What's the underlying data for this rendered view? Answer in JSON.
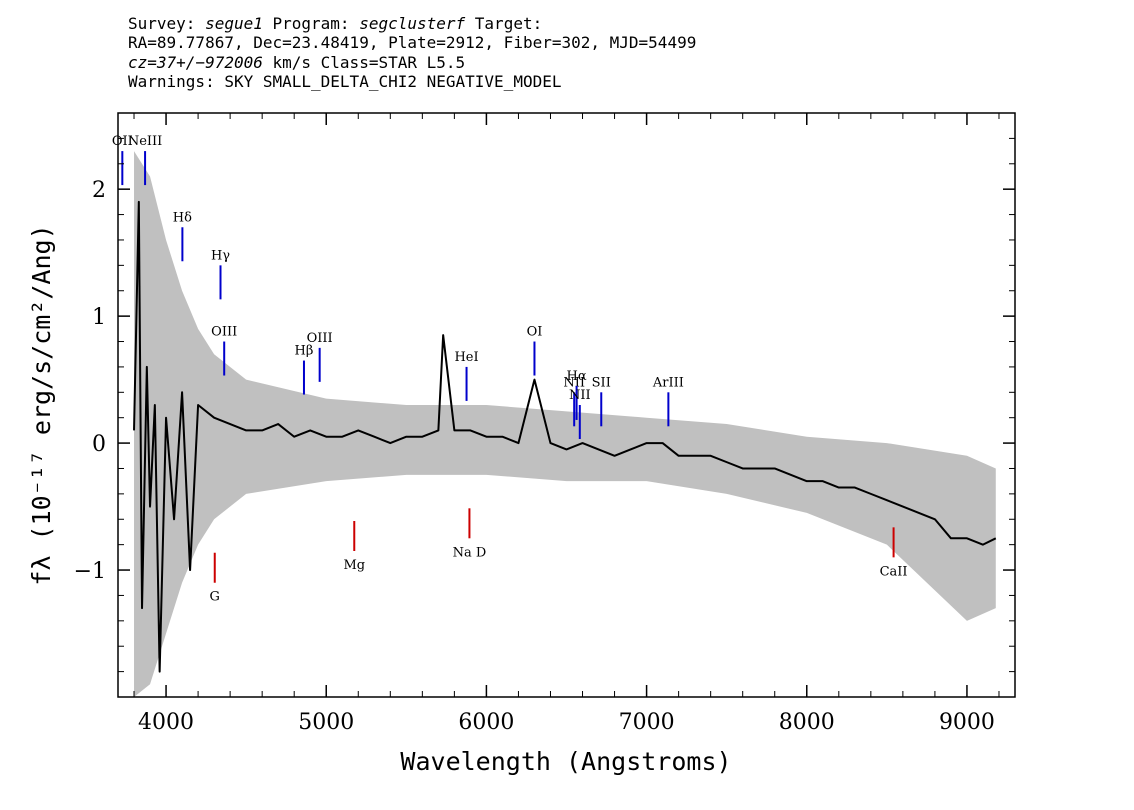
{
  "header": {
    "line1": {
      "survey_key": "Survey: ",
      "survey": "segue1",
      "program_key": " Program: ",
      "program": "segclusterf",
      "target_key": " Target:"
    },
    "line2": "RA=89.77867, Dec=23.48419, Plate=2912, Fiber=302, MJD=54499",
    "line3": {
      "cz": "cz=37+/−972006",
      "rest": " km/s Class=STAR L5.5"
    },
    "line4": "Warnings: SKY SMALL_DELTA_CHI2 NEGATIVE_MODEL"
  },
  "colors": {
    "flux": "#000000",
    "error_band": "#c0c0c0",
    "emission": "#0000cc",
    "absorption": "#cc0000"
  },
  "chart_data": {
    "type": "line",
    "xlabel": "Wavelength (Angstroms)",
    "ylabel": "fλ (10⁻¹⁷ erg/s/cm²/Ang)",
    "xlim": [
      3700,
      9300
    ],
    "ylim": [
      -2.0,
      2.6
    ],
    "xticks": [
      4000,
      5000,
      6000,
      7000,
      8000,
      9000
    ],
    "yticks": [
      -1,
      0,
      1,
      2
    ],
    "series": [
      {
        "role": "flux",
        "x": [
          3800,
          3830,
          3850,
          3880,
          3900,
          3930,
          3960,
          4000,
          4050,
          4100,
          4150,
          4200,
          4300,
          4400,
          4500,
          4600,
          4700,
          4800,
          4900,
          5000,
          5100,
          5200,
          5300,
          5400,
          5500,
          5600,
          5700,
          5730,
          5800,
          5900,
          6000,
          6100,
          6200,
          6300,
          6400,
          6500,
          6600,
          6700,
          6800,
          6900,
          7000,
          7100,
          7200,
          7300,
          7400,
          7500,
          7600,
          7700,
          7800,
          7900,
          8000,
          8100,
          8200,
          8300,
          8400,
          8500,
          8600,
          8700,
          8800,
          8900,
          9000,
          9100,
          9180
        ],
        "y": [
          0.1,
          1.9,
          -1.3,
          0.6,
          -0.5,
          0.3,
          -1.8,
          0.2,
          -0.6,
          0.4,
          -1.0,
          0.3,
          0.2,
          0.15,
          0.1,
          0.1,
          0.15,
          0.05,
          0.1,
          0.05,
          0.05,
          0.1,
          0.05,
          0.0,
          0.05,
          0.05,
          0.1,
          0.85,
          0.1,
          0.1,
          0.05,
          0.05,
          0.0,
          0.5,
          0.0,
          -0.05,
          0.0,
          -0.05,
          -0.1,
          -0.05,
          0.0,
          0.0,
          -0.1,
          -0.1,
          -0.1,
          -0.15,
          -0.2,
          -0.2,
          -0.2,
          -0.25,
          -0.3,
          -0.3,
          -0.35,
          -0.35,
          -0.4,
          -0.45,
          -0.5,
          -0.55,
          -0.6,
          -0.75,
          -0.75,
          -0.8,
          -0.75
        ]
      },
      {
        "role": "error_upper",
        "x": [
          3800,
          3900,
          4000,
          4100,
          4200,
          4300,
          4500,
          5000,
          5500,
          6000,
          6500,
          7000,
          7500,
          8000,
          8500,
          9000,
          9180
        ],
        "y": [
          2.3,
          2.1,
          1.6,
          1.2,
          0.9,
          0.7,
          0.5,
          0.35,
          0.3,
          0.3,
          0.25,
          0.2,
          0.15,
          0.05,
          0.0,
          -0.1,
          -0.2
        ]
      },
      {
        "role": "error_lower",
        "x": [
          3800,
          3900,
          4000,
          4100,
          4200,
          4300,
          4500,
          5000,
          5500,
          6000,
          6500,
          7000,
          7500,
          8000,
          8500,
          9000,
          9180
        ],
        "y": [
          -2.0,
          -1.9,
          -1.5,
          -1.1,
          -0.8,
          -0.6,
          -0.4,
          -0.3,
          -0.25,
          -0.25,
          -0.3,
          -0.3,
          -0.4,
          -0.55,
          -0.8,
          -1.4,
          -1.3
        ]
      }
    ],
    "emission_lines": [
      {
        "label": "OII",
        "x": 3727,
        "y": 2.3
      },
      {
        "label": "NeIII",
        "x": 3869,
        "y": 2.3
      },
      {
        "label": "Hδ",
        "x": 4102,
        "y": 1.7
      },
      {
        "label": "Hγ",
        "x": 4340,
        "y": 1.4
      },
      {
        "label": "OIII",
        "x": 4363,
        "y": 0.8
      },
      {
        "label": "Hβ",
        "x": 4861,
        "y": 0.65
      },
      {
        "label": "OIII",
        "x": 4959,
        "y": 0.75
      },
      {
        "label": "HeI",
        "x": 5876,
        "y": 0.6
      },
      {
        "label": "OI",
        "x": 6300,
        "y": 0.8
      },
      {
        "label": "NII",
        "x": 6548,
        "y": 0.4
      },
      {
        "label": "Hα",
        "x": 6563,
        "y": 0.45
      },
      {
        "label": "NII",
        "x": 6583,
        "y": 0.3
      },
      {
        "label": "SII",
        "x": 6717,
        "y": 0.4
      },
      {
        "label": "ArIII",
        "x": 7136,
        "y": 0.4
      }
    ],
    "absorption_lines": [
      {
        "label": "G",
        "x": 4304,
        "y": -1.1
      },
      {
        "label": "Mg",
        "x": 5175,
        "y": -0.85
      },
      {
        "label": "Na D",
        "x": 5894,
        "y": -0.75
      },
      {
        "label": "CaII",
        "x": 8542,
        "y": -0.9
      }
    ]
  }
}
